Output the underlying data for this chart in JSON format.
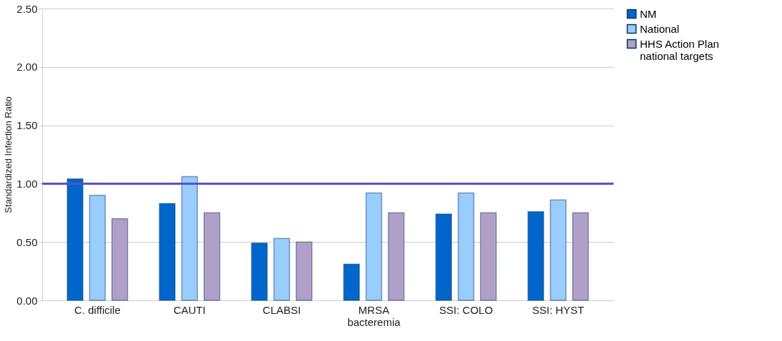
{
  "chart_data": {
    "type": "bar",
    "ylabel": "Standardized Infection Ratio",
    "categories": [
      "C. difficile",
      "CAUTI",
      "CLABSI",
      "MRSA bacteremia",
      "SSI: COLO",
      "SSI: HYST"
    ],
    "series": [
      {
        "name": "NM",
        "color": "#0066cc",
        "values": [
          1.04,
          0.83,
          0.49,
          0.31,
          0.74,
          0.76
        ]
      },
      {
        "name": "National",
        "color": "#99ccff",
        "values": [
          0.9,
          1.06,
          0.53,
          0.92,
          0.92,
          0.86
        ]
      },
      {
        "name": "HHS Action Plan national targets",
        "color": "#b0a0c8",
        "values": [
          0.7,
          0.75,
          0.5,
          0.75,
          0.75,
          0.75
        ]
      }
    ],
    "ylim": [
      0,
      2.5
    ],
    "yticks": [
      {
        "value": 0,
        "label": "0.00"
      },
      {
        "value": 0.5,
        "label": "0.50"
      },
      {
        "value": 1,
        "label": "1.00"
      },
      {
        "value": 1.5,
        "label": "1.50"
      },
      {
        "value": 2,
        "label": "2.00"
      },
      {
        "value": 2.5,
        "label": "2.50"
      }
    ],
    "ref_lines": [
      {
        "axis": "y",
        "value": 1,
        "color": "#5a4fcf"
      }
    ],
    "grid": "y",
    "legend": "right"
  }
}
